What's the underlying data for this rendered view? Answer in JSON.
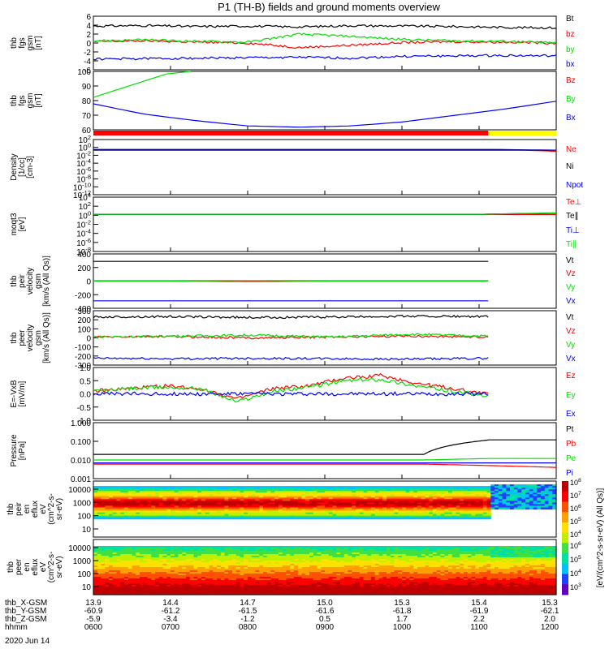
{
  "title": "P1 (TH-B) fields and ground moments overview",
  "date_label": "2020 Jun 14",
  "colors": {
    "black": "#000000",
    "red": "#ff0000",
    "green": "#00e000",
    "blue": "#0000ff",
    "yellow": "#ffff00"
  },
  "ephemeris": {
    "row_labels": [
      "thb_X-GSM",
      "thb_Y-GSM",
      "thb_Z-GSM",
      "hhmm"
    ],
    "columns": [
      [
        "13.9",
        "-60.9",
        "-5.9",
        "0600"
      ],
      [
        "14.4",
        "-61.2",
        "-3.4",
        "0700"
      ],
      [
        "14.7",
        "-61.5",
        "-1.2",
        "0800"
      ],
      [
        "15.0",
        "-61.6",
        "0.5",
        "0900"
      ],
      [
        "15.3",
        "-61.8",
        "1.7",
        "1000"
      ],
      [
        "15.4",
        "-61.9",
        "2.2",
        "1100"
      ],
      [
        "15.3",
        "-62.1",
        "2.0",
        "1200"
      ]
    ]
  },
  "colorbar": {
    "label": "[eV/(cm^2-s-sr-eV) (All Qs)]",
    "ticks_upper": [
      "10^8",
      "10^7",
      "10^6",
      "10^5",
      "10^4"
    ],
    "ticks_lower": [
      "10^6",
      "10^5",
      "10^4",
      "10^3"
    ]
  },
  "chart_data": [
    {
      "type": "line",
      "panel": "fgs_gsm_small",
      "ylabel": [
        "thb",
        "fgs",
        "gsm",
        "[nT]"
      ],
      "ylim": [
        -6,
        6
      ],
      "yticks": [
        "6",
        "4",
        "2",
        "0",
        "-2",
        "-4",
        "-6"
      ],
      "series": [
        {
          "name": "Bt",
          "color": "#000000",
          "values": [
            3.8,
            3.9,
            3.7,
            3.8,
            3.6,
            3.9,
            3.8,
            3.7,
            3.5,
            3.4
          ]
        },
        {
          "name": "bz",
          "color": "#ff0000",
          "values": [
            0.3,
            0.5,
            0.2,
            0.0,
            -1.0,
            -0.5,
            0.1,
            0.3,
            0.2,
            0.0
          ]
        },
        {
          "name": "by",
          "color": "#00e000",
          "values": [
            0.5,
            0.7,
            0.4,
            0.2,
            2.0,
            1.5,
            0.8,
            0.5,
            0.4,
            0.0
          ]
        },
        {
          "name": "bx",
          "color": "#0000ff",
          "values": [
            -3.6,
            -3.5,
            -3.4,
            -3.3,
            -3.2,
            -3.4,
            -3.0,
            -2.9,
            -2.8,
            -2.9
          ]
        }
      ]
    },
    {
      "type": "line",
      "panel": "fgs_gsm_large",
      "ylabel": [
        "thb",
        "fgs",
        "gsm",
        "[nT]"
      ],
      "ylim": [
        55,
        100
      ],
      "yticks": [
        "100",
        "90",
        "80",
        "70",
        "60"
      ],
      "series": [
        {
          "name": "Bz",
          "color": "#ff0000",
          "values": []
        },
        {
          "name": "By",
          "color": "#00e000",
          "values": [
            80,
            86,
            92,
            98,
            100
          ]
        },
        {
          "name": "Bx",
          "color": "#0000ff",
          "values": [
            75,
            67,
            62,
            58,
            57,
            58,
            61,
            66,
            71,
            77
          ]
        }
      ]
    },
    {
      "type": "line",
      "panel": "density",
      "ylabel": [
        "Density",
        "[1/cc]",
        "[cm-3]"
      ],
      "ylim": [
        -12,
        2
      ],
      "scale": "log",
      "yticks": [
        "10^2",
        "10^0",
        "10^-2",
        "10^-4",
        "10^-6",
        "10^-8",
        "10^-10",
        "10^-12"
      ],
      "series": [
        {
          "name": "Ne",
          "color": "#ff0000",
          "values": [
            0.3,
            0.3,
            0.3,
            0.3,
            0.3,
            0.3,
            0.3,
            0.1
          ]
        },
        {
          "name": "Ni",
          "color": "#000000",
          "values": [
            0.3,
            0.3,
            0.3,
            0.3,
            0.3,
            0.3,
            0.3,
            0.2
          ]
        },
        {
          "name": "Npot",
          "color": "#0000ff",
          "values": [
            0.2,
            0.2,
            0.2,
            0.2,
            0.2,
            0.2,
            0.2
          ]
        }
      ]
    },
    {
      "type": "line",
      "panel": "temperature",
      "ylabel": [
        "moqt3",
        "[eV]"
      ],
      "ylim": [
        -8,
        4
      ],
      "scale": "log",
      "yticks": [
        "10^4",
        "10^2",
        "10^0",
        "10^-2",
        "10^-4",
        "10^-6",
        "10^-8"
      ],
      "series": [
        {
          "name": "Te⊥",
          "color": "#ff0000",
          "values": [
            1.5,
            1.5,
            1.5,
            1.5,
            1.5,
            1.5,
            1.5
          ]
        },
        {
          "name": "Te∥",
          "color": "#000000",
          "values": [
            1.6,
            1.6,
            1.6,
            1.6,
            1.6,
            1.6,
            2.8
          ]
        },
        {
          "name": "Ti⊥",
          "color": "#0000ff",
          "values": [
            1.6,
            1.6,
            1.6,
            1.6,
            1.6,
            1.6,
            2.9
          ]
        },
        {
          "name": "Ti∥",
          "color": "#00e000",
          "values": [
            1.6,
            1.6,
            1.6,
            1.6,
            1.6,
            1.6,
            3.1
          ]
        }
      ]
    },
    {
      "type": "line",
      "panel": "peir_velocity",
      "ylabel": [
        "thb",
        "peir",
        "velocity",
        "gsm",
        "[km/s (All Qs)]"
      ],
      "ylim": [
        -400,
        400
      ],
      "yticks": [
        "400",
        "200",
        "0",
        "-200",
        "-400"
      ],
      "series": [
        {
          "name": "Vt",
          "color": "#000000",
          "values": [
            290,
            290,
            290,
            290,
            290,
            290
          ]
        },
        {
          "name": "Vz",
          "color": "#ff0000",
          "values": [
            5,
            5,
            5,
            5,
            5,
            5
          ]
        },
        {
          "name": "Vy",
          "color": "#00e000",
          "values": [
            0,
            0,
            -10,
            0,
            0,
            0
          ]
        },
        {
          "name": "Vx",
          "color": "#0000ff",
          "values": [
            -290,
            -290,
            -290,
            -290,
            -290,
            -290
          ]
        }
      ]
    },
    {
      "type": "line",
      "panel": "peer_velocity",
      "ylabel": [
        "thb",
        "peer",
        "velocity",
        "gsm",
        "[km/s (All Qs)]"
      ],
      "ylim": [
        -300,
        300
      ],
      "yticks": [
        "300",
        "200",
        "100",
        "0",
        "-100",
        "-200",
        "-300"
      ],
      "series": [
        {
          "name": "Vt",
          "color": "#000000",
          "values": [
            230,
            235,
            225,
            230,
            240,
            235
          ]
        },
        {
          "name": "Vz",
          "color": "#ff0000",
          "values": [
            10,
            15,
            0,
            10,
            20,
            10
          ]
        },
        {
          "name": "Vy",
          "color": "#00e000",
          "values": [
            10,
            20,
            30,
            10,
            40,
            20
          ]
        },
        {
          "name": "Vx",
          "color": "#0000ff",
          "values": [
            -225,
            -230,
            -225,
            -230,
            -235,
            -225
          ]
        }
      ]
    },
    {
      "type": "line",
      "panel": "e_field",
      "ylabel": [
        "E=-VxB",
        "[mV/m]"
      ],
      "ylim": [
        -1.0,
        1.0
      ],
      "yticks": [
        "1.0",
        "0.5",
        "0.0",
        "-0.5",
        "-1.0"
      ],
      "series": [
        {
          "name": "Ez",
          "color": "#ff0000",
          "values": [
            0.1,
            0.2,
            0.3,
            0.2,
            -0.2,
            0.2,
            0.3,
            0.6,
            0.7,
            0.4,
            0.2,
            0.0
          ]
        },
        {
          "name": "Ey",
          "color": "#00e000",
          "values": [
            0.1,
            0.2,
            0.25,
            0.2,
            -0.3,
            0.1,
            0.25,
            0.5,
            0.55,
            0.3,
            0.1,
            -0.1
          ]
        },
        {
          "name": "Ex",
          "color": "#0000ff",
          "values": [
            0.0,
            0.0,
            0.0,
            0.0,
            0.0,
            0.0,
            0.0,
            0.0,
            0.0,
            0.0,
            0.0,
            0.0
          ]
        }
      ]
    },
    {
      "type": "line",
      "panel": "pressure",
      "ylabel": [
        "Pressure",
        "[nPa]"
      ],
      "ylim": [
        0.001,
        1.0
      ],
      "scale": "log",
      "yticks": [
        "1.000",
        "0.100",
        "0.010",
        "0.001"
      ],
      "series": [
        {
          "name": "Pt",
          "color": "#000000",
          "values": [
            0.02,
            0.02,
            0.02,
            0.02,
            0.02,
            0.02,
            0.12,
            0.12
          ]
        },
        {
          "name": "Pb",
          "color": "#ff0000",
          "values": [
            0.006,
            0.006,
            0.006,
            0.006,
            0.006,
            0.006,
            0.005,
            0.004
          ]
        },
        {
          "name": "Pe",
          "color": "#00e000",
          "values": [
            0.01,
            0.01,
            0.01,
            0.01,
            0.01,
            0.01,
            0.012,
            0.012
          ]
        },
        {
          "name": "Pi",
          "color": "#0000ff",
          "values": [
            0.007,
            0.007,
            0.007,
            0.007,
            0.007,
            0.007
          ]
        }
      ]
    },
    {
      "type": "heatmap",
      "panel": "peir_spectrogram",
      "ylabel": [
        "thb",
        "peir",
        "en",
        "eflux",
        "eV",
        "(cm^2-s-",
        "sr-eV)"
      ],
      "yticks": [
        "10000",
        "1000",
        "100",
        "10"
      ],
      "scale": "log"
    },
    {
      "type": "heatmap",
      "panel": "peer_spectrogram",
      "ylabel": [
        "thb",
        "peer",
        "en",
        "eflux",
        "eV",
        "(cm^2-s-",
        "sr-eV)"
      ],
      "yticks": [
        "10000",
        "1000",
        "100",
        "10"
      ],
      "scale": "log"
    }
  ]
}
